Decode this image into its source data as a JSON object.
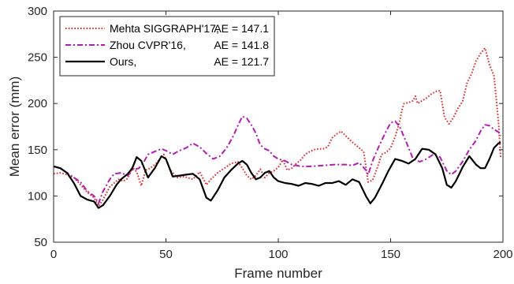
{
  "chart_data": {
    "type": "line",
    "xlabel": "Frame number",
    "ylabel": "Mean error (mm)",
    "xlim": [
      0,
      200
    ],
    "ylim": [
      50,
      300
    ],
    "xticks": [
      0,
      50,
      100,
      150,
      200
    ],
    "yticks": [
      50,
      100,
      150,
      200,
      250,
      300
    ],
    "grid": false,
    "legend_position": "top-left",
    "series": [
      {
        "name": "Mehta SIGGRAPH'17,",
        "ae_label": "AE = 147.1",
        "color": "#e8262a",
        "style": "dotted",
        "x": [
          0,
          3,
          6,
          9,
          12,
          15,
          18,
          20,
          22,
          25,
          27,
          29,
          31,
          33,
          35,
          37,
          39,
          41,
          43,
          46,
          49,
          52,
          55,
          58,
          62,
          65,
          68,
          70,
          73,
          76,
          79,
          82,
          84,
          86,
          88,
          90,
          92,
          94,
          96,
          98,
          100,
          102,
          104,
          106,
          108,
          110,
          112,
          114,
          116,
          118,
          120,
          122,
          124,
          126,
          128,
          130,
          133,
          136,
          138,
          140,
          142,
          144,
          146,
          148,
          150,
          152,
          154,
          155,
          156,
          158,
          160,
          161,
          162,
          164,
          166,
          168,
          170,
          172,
          174,
          176,
          178,
          180,
          182,
          184,
          186,
          188,
          190,
          192,
          194,
          196,
          197,
          198,
          199
        ],
        "y": [
          124,
          125,
          123,
          120,
          112,
          104,
          98,
          89,
          96,
          110,
          114,
          118,
          116,
          119,
          131,
          126,
          111,
          128,
          130,
          136,
          145,
          128,
          120,
          121,
          118,
          126,
          112,
          118,
          125,
          130,
          135,
          137,
          130,
          122,
          118,
          122,
          129,
          120,
          125,
          127,
          131,
          139,
          128,
          130,
          135,
          139,
          145,
          148,
          150,
          151,
          151,
          153,
          163,
          167,
          170,
          165,
          158,
          152,
          148,
          115,
          117,
          130,
          145,
          147,
          152,
          164,
          180,
          193,
          200,
          201,
          203,
          208,
          200,
          203,
          206,
          210,
          213,
          214,
          185,
          178,
          185,
          195,
          202,
          222,
          232,
          246,
          254,
          260,
          242,
          230,
          205,
          180,
          142
        ]
      },
      {
        "name": "Zhou CVPR'16,",
        "ae_label": "AE = 141.8",
        "color": "#b41bb4",
        "style": "dash-dot",
        "x": [
          0,
          3,
          6,
          9,
          12,
          15,
          18,
          20,
          22,
          25,
          27,
          30,
          33,
          35,
          38,
          40,
          42,
          45,
          48,
          50,
          53,
          56,
          59,
          62,
          65,
          68,
          71,
          74,
          77,
          80,
          82,
          84,
          86,
          88,
          90,
          92,
          94,
          96,
          98,
          100,
          103,
          106,
          110,
          115,
          120,
          125,
          130,
          133,
          136,
          139,
          140,
          142,
          145,
          148,
          150,
          152,
          154,
          157,
          160,
          163,
          166,
          169,
          172,
          175,
          177,
          179,
          182,
          185,
          188,
          190,
          192,
          194,
          196,
          198,
          199
        ],
        "y": [
          132,
          130,
          125,
          120,
          115,
          105,
          100,
          92,
          105,
          118,
          124,
          125,
          122,
          128,
          130,
          136,
          145,
          148,
          151,
          149,
          145,
          149,
          152,
          157,
          153,
          146,
          140,
          143,
          152,
          165,
          176,
          186,
          184,
          177,
          168,
          155,
          151,
          149,
          143,
          140,
          138,
          134,
          132,
          132,
          133,
          134,
          134,
          133,
          136,
          128,
          123,
          138,
          155,
          170,
          179,
          181,
          175,
          158,
          140,
          137,
          140,
          145,
          142,
          127,
          123,
          127,
          137,
          150,
          160,
          170,
          177,
          176,
          172,
          169,
          165
        ]
      },
      {
        "name": "Ours,",
        "ae_label": "AE = 121.7",
        "color": "#000000",
        "style": "solid",
        "x": [
          0,
          3,
          6,
          9,
          12,
          15,
          18,
          20,
          22,
          25,
          28,
          30,
          33,
          35,
          37,
          39,
          42,
          45,
          48,
          50,
          53,
          56,
          59,
          62,
          65,
          68,
          70,
          73,
          76,
          79,
          82,
          84,
          86,
          88,
          90,
          92,
          94,
          96,
          98,
          100,
          103,
          106,
          109,
          112,
          115,
          118,
          121,
          124,
          127,
          130,
          133,
          136,
          139,
          141,
          143,
          146,
          149,
          152,
          155,
          158,
          161,
          164,
          167,
          170,
          173,
          175,
          177,
          179,
          182,
          185,
          188,
          190,
          192,
          194,
          196,
          198,
          199
        ],
        "y": [
          132,
          130,
          125,
          114,
          100,
          96,
          94,
          87,
          90,
          100,
          112,
          118,
          124,
          130,
          142,
          138,
          120,
          130,
          143,
          140,
          121,
          122,
          123,
          124,
          118,
          98,
          95,
          106,
          120,
          128,
          135,
          138,
          134,
          125,
          118,
          120,
          125,
          127,
          120,
          116,
          114,
          113,
          111,
          114,
          113,
          111,
          114,
          114,
          116,
          112,
          118,
          115,
          100,
          92,
          98,
          112,
          127,
          140,
          138,
          135,
          140,
          151,
          150,
          145,
          130,
          112,
          109,
          116,
          131,
          143,
          134,
          130,
          130,
          140,
          152,
          157,
          158
        ]
      }
    ]
  }
}
